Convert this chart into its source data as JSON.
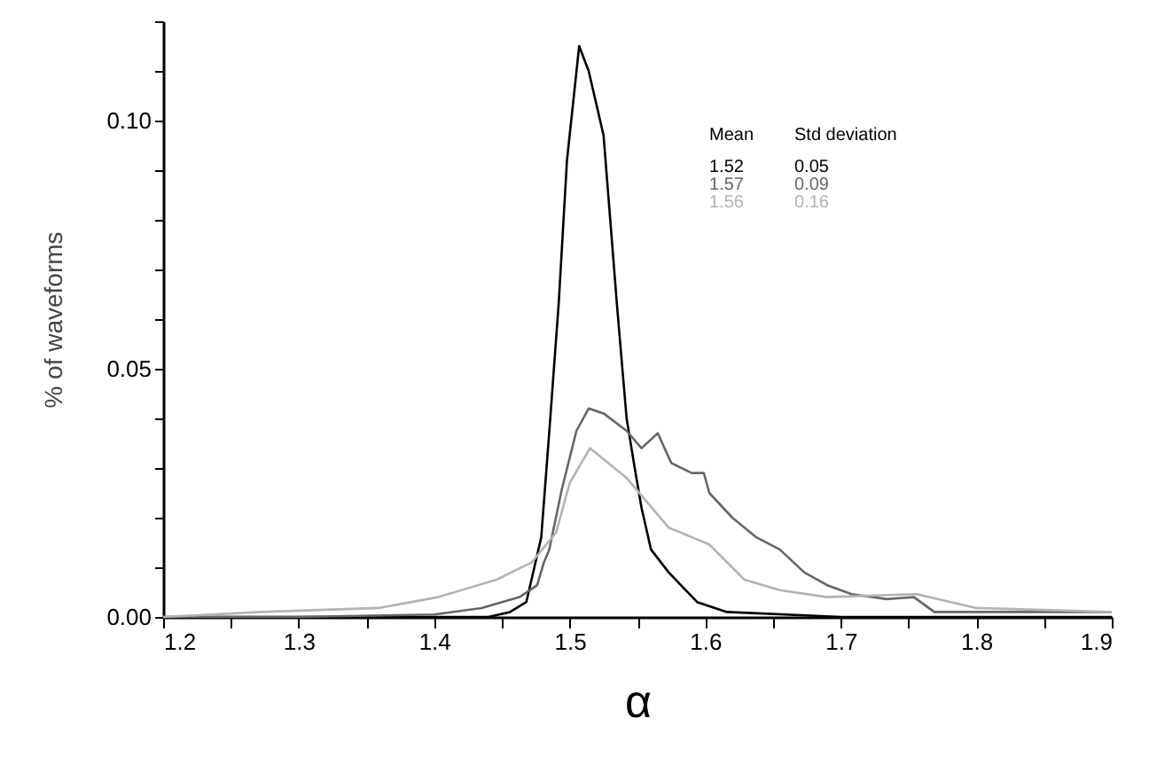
{
  "chart_data": {
    "type": "line",
    "xlabel": "α",
    "ylabel": "% of waveforms",
    "xlim": [
      1.2,
      1.9
    ],
    "xticks": [
      1.2,
      {
        "value": 1.25,
        "label": null
      },
      1.3,
      {
        "value": 1.35,
        "label": null
      },
      1.4,
      {
        "value": 1.45,
        "label": null
      },
      1.5,
      {
        "value": 1.55,
        "label": null
      },
      1.6,
      {
        "value": 1.65,
        "label": null
      },
      1.7,
      {
        "value": 1.75,
        "label": null
      },
      1.8,
      {
        "value": 1.85,
        "label": null
      },
      1.9
    ],
    "ylim": [
      0,
      0.12
    ],
    "yticks": [
      {
        "value": 0,
        "label": "0.00"
      },
      {
        "value": 0.01,
        "label": null
      },
      {
        "value": 0.02,
        "label": null
      },
      {
        "value": 0.03,
        "label": null
      },
      {
        "value": 0.04,
        "label": null
      },
      {
        "value": 0.05,
        "label": "0.05"
      },
      {
        "value": 0.06,
        "label": null
      },
      {
        "value": 0.07,
        "label": null
      },
      {
        "value": 0.08,
        "label": null
      },
      {
        "value": 0.09,
        "label": null
      },
      {
        "value": 0.1,
        "label": "0.10"
      },
      {
        "value": 0.11,
        "label": null
      },
      {
        "value": 0.12,
        "label": null
      }
    ],
    "grid": false,
    "marker": "none",
    "line_style": "solid",
    "annotations": [
      "Mean",
      "Std deviation",
      "1.52",
      "0.05",
      "1.57",
      "0.09",
      "1.56",
      "0.16"
    ],
    "series": [
      {
        "color": "#000000",
        "x": [
          1.2,
          1.3,
          1.4,
          1.44,
          1.456,
          1.468,
          1.479,
          1.485,
          1.492,
          1.498,
          1.507,
          1.514,
          1.525,
          1.535,
          1.542,
          1.548,
          1.553,
          1.56,
          1.573,
          1.594,
          1.616,
          1.7,
          1.8,
          1.9
        ],
        "values": [
          0,
          0,
          0,
          0,
          0.001,
          0.003,
          0.016,
          0.0375,
          0.0636,
          0.092,
          0.115,
          0.11,
          0.097,
          0.0625,
          0.04,
          0.03,
          0.022,
          0.0136,
          0.009,
          0.003,
          0.001,
          0,
          0,
          0
        ]
      },
      {
        "color": "#666666",
        "x": [
          1.2,
          1.3,
          1.4,
          1.435,
          1.463,
          1.476,
          1.481,
          1.485,
          1.494,
          1.505,
          1.514,
          1.525,
          1.542,
          1.553,
          1.565,
          1.575,
          1.59,
          1.599,
          1.603,
          1.62,
          1.638,
          1.655,
          1.673,
          1.69,
          1.708,
          1.734,
          1.754,
          1.769,
          1.8,
          1.9
        ],
        "values": [
          0,
          0,
          0.0005,
          0.0018,
          0.004,
          0.0064,
          0.011,
          0.0136,
          0.0255,
          0.0375,
          0.042,
          0.041,
          0.0375,
          0.034,
          0.037,
          0.031,
          0.029,
          0.029,
          0.025,
          0.02,
          0.016,
          0.0136,
          0.009,
          0.0064,
          0.0046,
          0.0036,
          0.004,
          0.001,
          0.001,
          0.001
        ]
      },
      {
        "color": "#b3b3b3",
        "x": [
          1.2,
          1.272,
          1.359,
          1.403,
          1.446,
          1.472,
          1.49,
          1.5,
          1.515,
          1.542,
          1.573,
          1.603,
          1.629,
          1.655,
          1.69,
          1.756,
          1.8,
          1.9
        ],
        "values": [
          0,
          0.001,
          0.0018,
          0.004,
          0.0075,
          0.011,
          0.017,
          0.027,
          0.034,
          0.028,
          0.018,
          0.0146,
          0.0075,
          0.0054,
          0.004,
          0.0046,
          0.0018,
          0.001
        ]
      }
    ]
  }
}
